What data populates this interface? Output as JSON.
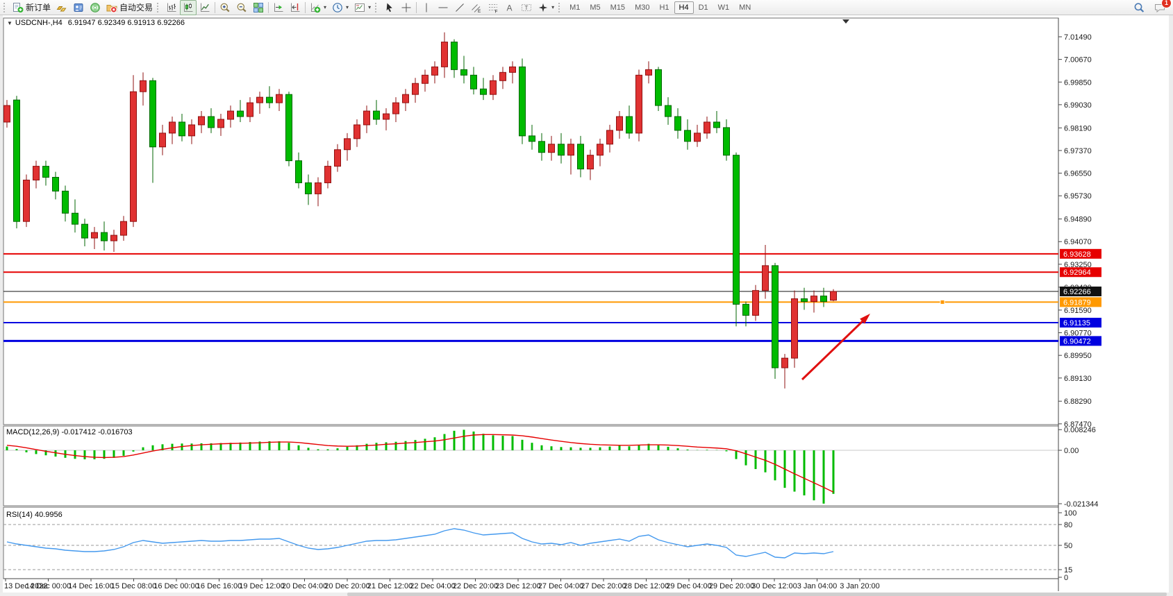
{
  "toolbar": {
    "new_order_label": "新订单",
    "auto_trading_label": "自动交易",
    "timeframes": [
      "M1",
      "M5",
      "M15",
      "M30",
      "H1",
      "H4",
      "D1",
      "W1",
      "MN"
    ],
    "active_timeframe": "H4",
    "notification_count": "1"
  },
  "chart": {
    "title": "USDCNH-,H4",
    "ohlc": "6.91947 6.92349 6.91913 6.92266"
  },
  "chart_data": {
    "type": "candlestick",
    "symbol": "USDCNH-",
    "timeframe": "H4",
    "bull_color": "#e03232",
    "bear_color": "#00bb00",
    "price_axis_ticks": [
      "7.01490",
      "7.00670",
      "6.99850",
      "6.99030",
      "6.98190",
      "6.97370",
      "6.96550",
      "6.95730",
      "6.94890",
      "6.94070",
      "6.93250",
      "6.92420",
      "6.91590",
      "6.90770",
      "6.89950",
      "6.89130",
      "6.88290",
      "6.87470"
    ],
    "time_axis_labels": [
      "13 Dec 2022",
      "14 Dec 00:00",
      "14 Dec 16:00",
      "15 Dec 08:00",
      "16 Dec 00:00",
      "16 Dec 16:00",
      "19 Dec 12:00",
      "20 Dec 04:00",
      "20 Dec 20:00",
      "21 Dec 12:00",
      "22 Dec 04:00",
      "22 Dec 20:00",
      "23 Dec 12:00",
      "27 Dec 04:00",
      "27 Dec 20:00",
      "28 Dec 12:00",
      "29 Dec 04:00",
      "29 Dec 20:00",
      "30 Dec 12:00",
      "3 Jan 04:00",
      "3 Jan 20:00"
    ],
    "candles": [
      [
        6.984,
        6.992,
        6.982,
        6.99
      ],
      [
        6.992,
        6.9935,
        6.9455,
        6.948
      ],
      [
        6.948,
        6.965,
        6.946,
        6.963
      ],
      [
        6.963,
        6.97,
        6.96,
        6.968
      ],
      [
        6.968,
        6.97,
        6.961,
        6.964
      ],
      [
        6.964,
        6.966,
        6.956,
        6.959
      ],
      [
        6.959,
        6.961,
        6.948,
        6.951
      ],
      [
        6.951,
        6.956,
        6.944,
        6.947
      ],
      [
        6.947,
        6.949,
        6.939,
        6.942
      ],
      [
        6.942,
        6.946,
        6.938,
        6.944
      ],
      [
        6.944,
        6.948,
        6.9375,
        6.941
      ],
      [
        6.941,
        6.945,
        6.937,
        6.943
      ],
      [
        6.943,
        6.95,
        6.941,
        6.948
      ],
      [
        6.948,
        7.001,
        6.946,
        6.995
      ],
      [
        6.995,
        7.002,
        6.99,
        6.999
      ],
      [
        6.999,
        7.0,
        6.962,
        6.975
      ],
      [
        6.975,
        6.983,
        6.972,
        6.98
      ],
      [
        6.98,
        6.986,
        6.976,
        6.984
      ],
      [
        6.984,
        6.987,
        6.977,
        6.979
      ],
      [
        6.979,
        6.985,
        6.976,
        6.983
      ],
      [
        6.983,
        6.988,
        6.98,
        6.986
      ],
      [
        6.986,
        6.989,
        6.98,
        6.982
      ],
      [
        6.982,
        6.987,
        6.979,
        6.985
      ],
      [
        6.985,
        6.99,
        6.982,
        6.988
      ],
      [
        6.988,
        6.992,
        6.984,
        6.986
      ],
      [
        6.986,
        6.993,
        6.984,
        6.991
      ],
      [
        6.991,
        6.995,
        6.987,
        6.993
      ],
      [
        6.993,
        6.997,
        6.989,
        6.991
      ],
      [
        6.991,
        6.996,
        6.988,
        6.994
      ],
      [
        6.994,
        6.995,
        6.968,
        6.97
      ],
      [
        6.97,
        6.973,
        6.96,
        6.962
      ],
      [
        6.962,
        6.965,
        6.954,
        6.958
      ],
      [
        6.958,
        6.964,
        6.9535,
        6.962
      ],
      [
        6.962,
        6.97,
        6.96,
        6.968
      ],
      [
        6.968,
        6.976,
        6.966,
        6.974
      ],
      [
        6.974,
        6.98,
        6.97,
        6.978
      ],
      [
        6.978,
        6.985,
        6.975,
        6.983
      ],
      [
        6.983,
        6.99,
        6.98,
        6.988
      ],
      [
        6.988,
        6.992,
        6.983,
        6.985
      ],
      [
        6.985,
        6.989,
        6.981,
        6.987
      ],
      [
        6.987,
        6.993,
        6.984,
        6.991
      ],
      [
        6.991,
        6.996,
        6.988,
        6.994
      ],
      [
        6.994,
        7.0,
        6.991,
        6.998
      ],
      [
        6.998,
        7.003,
        6.995,
        7.001
      ],
      [
        7.001,
        7.006,
        6.998,
        7.004
      ],
      [
        7.004,
        7.0165,
        7.0,
        7.013
      ],
      [
        7.013,
        7.014,
        7.0,
        7.003
      ],
      [
        7.003,
        7.008,
        6.998,
        7.001
      ],
      [
        7.001,
        7.004,
        6.994,
        6.996
      ],
      [
        6.996,
        7.0,
        6.992,
        6.994
      ],
      [
        6.994,
        7.001,
        6.992,
        6.999
      ],
      [
        6.999,
        7.004,
        6.996,
        7.002
      ],
      [
        7.002,
        7.006,
        6.998,
        7.004
      ],
      [
        7.004,
        7.007,
        6.976,
        6.979
      ],
      [
        6.979,
        6.983,
        6.974,
        6.977
      ],
      [
        6.977,
        6.98,
        6.97,
        6.973
      ],
      [
        6.973,
        6.979,
        6.97,
        6.976
      ],
      [
        6.976,
        6.98,
        6.969,
        6.972
      ],
      [
        6.972,
        6.978,
        6.965,
        6.976
      ],
      [
        6.976,
        6.979,
        6.964,
        6.967
      ],
      [
        6.967,
        6.974,
        6.963,
        6.972
      ],
      [
        6.972,
        6.978,
        6.968,
        6.976
      ],
      [
        6.976,
        6.983,
        6.973,
        6.981
      ],
      [
        6.981,
        6.988,
        6.978,
        6.986
      ],
      [
        6.986,
        6.99,
        6.978,
        6.98
      ],
      [
        6.98,
        7.003,
        6.977,
        7.001
      ],
      [
        7.001,
        7.006,
        6.998,
        7.003
      ],
      [
        7.003,
        7.004,
        6.988,
        6.99
      ],
      [
        6.99,
        6.993,
        6.983,
        6.986
      ],
      [
        6.986,
        6.989,
        6.978,
        6.981
      ],
      [
        6.981,
        6.985,
        6.974,
        6.977
      ],
      [
        6.977,
        6.983,
        6.975,
        6.98
      ],
      [
        6.98,
        6.986,
        6.978,
        6.984
      ],
      [
        6.984,
        6.988,
        6.98,
        6.982
      ],
      [
        6.982,
        6.985,
        6.97,
        6.972
      ],
      [
        6.972,
        6.973,
        6.91,
        6.918
      ],
      [
        6.918,
        6.919,
        6.91,
        6.914
      ],
      [
        6.914,
        6.925,
        6.912,
        6.923
      ],
      [
        6.923,
        6.9395,
        6.92,
        6.932
      ],
      [
        6.932,
        6.933,
        6.891,
        6.895
      ],
      [
        6.895,
        6.9,
        6.8875,
        6.8985
      ],
      [
        6.8985,
        6.923,
        6.895,
        6.92
      ],
      [
        6.92,
        6.924,
        6.916,
        6.919
      ],
      [
        6.919,
        6.923,
        6.915,
        6.921
      ],
      [
        6.921,
        6.924,
        6.917,
        6.919
      ],
      [
        6.91947,
        6.92349,
        6.91913,
        6.92266
      ]
    ],
    "levels": [
      {
        "price": 6.93628,
        "color": "#e60000",
        "width": 2
      },
      {
        "price": 6.92964,
        "color": "#e60000",
        "width": 2
      },
      {
        "price": 6.92266,
        "color": "#111111",
        "width": 1
      },
      {
        "price": 6.91879,
        "color": "#ff9900",
        "width": 2,
        "handle": true
      },
      {
        "price": 6.91135,
        "color": "#0000e0",
        "width": 2
      },
      {
        "price": 6.90472,
        "color": "#0000e0",
        "width": 3
      }
    ],
    "macd": {
      "label_full": "MACD(12,26,9) -0.017412 -0.016703",
      "params": "12,26,9",
      "value": -0.017412,
      "signal_value": -0.016703,
      "axis_labels": [
        "0.008246",
        "0.00",
        "-0.021344"
      ],
      "histogram": [
        0.0015,
        0.0005,
        -0.0008,
        -0.0015,
        -0.002,
        -0.0025,
        -0.003,
        -0.0034,
        -0.0036,
        -0.0036,
        -0.0034,
        -0.003,
        -0.0022,
        -0.0005,
        0.0012,
        0.002,
        0.0024,
        0.0026,
        0.0027,
        0.0027,
        0.0028,
        0.0028,
        0.0029,
        0.003,
        0.0031,
        0.0033,
        0.0035,
        0.0036,
        0.0036,
        0.003,
        0.002,
        0.001,
        0.0004,
        0.0004,
        0.0008,
        0.0014,
        0.002,
        0.0026,
        0.003,
        0.0032,
        0.0034,
        0.0037,
        0.0041,
        0.0046,
        0.0052,
        0.0065,
        0.0078,
        0.0082,
        0.0075,
        0.0066,
        0.006,
        0.0058,
        0.0057,
        0.0042,
        0.003,
        0.002,
        0.0016,
        0.0013,
        0.0012,
        0.001,
        0.001,
        0.0012,
        0.0015,
        0.0018,
        0.0016,
        0.0022,
        0.0026,
        0.002,
        0.0014,
        0.0008,
        0.0003,
        0.0001,
        0.0002,
        0.0001,
        -0.0004,
        -0.0035,
        -0.006,
        -0.0075,
        -0.0088,
        -0.012,
        -0.015,
        -0.0165,
        -0.018,
        -0.02,
        -0.0213,
        -0.0174
      ],
      "signal": [
        0.002,
        0.0016,
        0.001,
        0.0003,
        -0.0004,
        -0.001,
        -0.0016,
        -0.0021,
        -0.0025,
        -0.0028,
        -0.0029,
        -0.0028,
        -0.0025,
        -0.0019,
        -0.0011,
        -0.0003,
        0.0004,
        0.001,
        0.0015,
        0.0019,
        0.0022,
        0.0024,
        0.0026,
        0.0027,
        0.0028,
        0.0029,
        0.003,
        0.0032,
        0.0033,
        0.0033,
        0.0031,
        0.0027,
        0.0023,
        0.0019,
        0.0017,
        0.0016,
        0.0017,
        0.0019,
        0.0021,
        0.0024,
        0.0026,
        0.0029,
        0.0031,
        0.0034,
        0.0037,
        0.0042,
        0.0049,
        0.0056,
        0.0061,
        0.0063,
        0.0063,
        0.0062,
        0.0061,
        0.0058,
        0.0053,
        0.0047,
        0.0041,
        0.0036,
        0.0031,
        0.0027,
        0.0024,
        0.0022,
        0.0021,
        0.002,
        0.002,
        0.0021,
        0.0022,
        0.0022,
        0.0021,
        0.0019,
        0.0016,
        0.0013,
        0.0011,
        0.0009,
        0.0006,
        -0.0002,
        -0.0014,
        -0.0027,
        -0.004,
        -0.0056,
        -0.0075,
        -0.0094,
        -0.0112,
        -0.013,
        -0.0148,
        -0.0167
      ]
    },
    "rsi": {
      "label_full": "RSI(14) 40.9956",
      "period": 14,
      "value": 40.9956,
      "axis_labels": [
        "100",
        "80",
        "50",
        "15",
        "0"
      ],
      "levels": [
        80,
        50,
        15
      ],
      "series": [
        55,
        52,
        50,
        48,
        46,
        45,
        43,
        42,
        41,
        41,
        42,
        44,
        48,
        54,
        57,
        55,
        53,
        54,
        55,
        56,
        57,
        56,
        56,
        57,
        57,
        58,
        59,
        59,
        60,
        55,
        50,
        46,
        44,
        45,
        47,
        50,
        53,
        56,
        57,
        57,
        58,
        60,
        62,
        64,
        66,
        71,
        74,
        72,
        68,
        65,
        66,
        67,
        68,
        60,
        55,
        52,
        53,
        51,
        54,
        50,
        53,
        55,
        57,
        59,
        56,
        63,
        65,
        58,
        54,
        51,
        48,
        50,
        52,
        50,
        47,
        36,
        34,
        37,
        40,
        33,
        32,
        39,
        38,
        39,
        38,
        41
      ]
    },
    "arrow_annotation": {
      "color": "#e01010"
    }
  }
}
